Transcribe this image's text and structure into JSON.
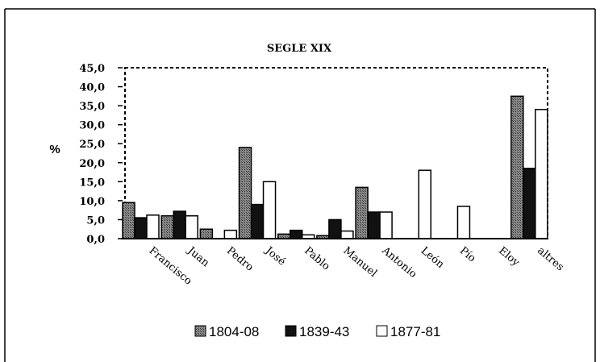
{
  "chart_data": {
    "type": "bar",
    "title": "SEGLE XIX",
    "ylabel": "%",
    "xlabel": "",
    "ylim": [
      0,
      45
    ],
    "yticks": [
      "0,0",
      "5,0",
      "10,0",
      "15,0",
      "20,0",
      "25,0",
      "30,0",
      "35,0",
      "40,0",
      "45,0"
    ],
    "categories": [
      "Francisco",
      "Juan",
      "Pedro",
      "José",
      "Pablo",
      "Manuel",
      "Antonio",
      "León",
      "Pío",
      "Eloy",
      "altres"
    ],
    "series": [
      {
        "name": "1804-08",
        "values": [
          9.5,
          6.0,
          2.5,
          24.0,
          1.2,
          0.8,
          13.5,
          0.0,
          0.0,
          0.0,
          37.5
        ],
        "color": "#6e6e6e"
      },
      {
        "name": "1839-43",
        "values": [
          5.5,
          7.2,
          0.0,
          9.0,
          2.2,
          5.0,
          7.0,
          0.0,
          0.0,
          0.0,
          18.5
        ],
        "color": "#111111"
      },
      {
        "name": "1877-81",
        "values": [
          6.2,
          6.0,
          2.2,
          15.0,
          1.0,
          2.0,
          7.0,
          18.0,
          8.5,
          0.0,
          34.0
        ],
        "color": "#ffffff"
      }
    ],
    "legend": "bottom",
    "grid": false
  }
}
